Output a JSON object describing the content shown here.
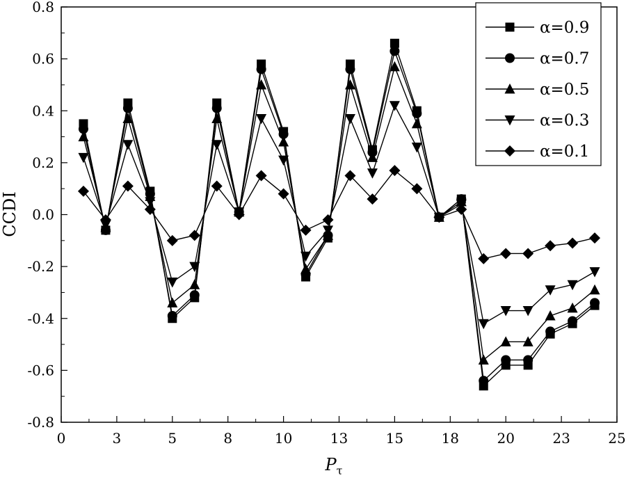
{
  "chart_data": {
    "type": "line",
    "ylabel": "CCDI",
    "xlabel": "P",
    "xlabel_subscript": "τ",
    "xlim": [
      0,
      25
    ],
    "ylim": [
      -0.8,
      0.8
    ],
    "x_ticks": [
      {
        "pos": 0,
        "label": "0"
      },
      {
        "pos": 2.5,
        "label": "3"
      },
      {
        "pos": 5,
        "label": "5"
      },
      {
        "pos": 7.5,
        "label": "8"
      },
      {
        "pos": 10,
        "label": "10"
      },
      {
        "pos": 12.5,
        "label": "13"
      },
      {
        "pos": 15,
        "label": "15"
      },
      {
        "pos": 17.5,
        "label": "18"
      },
      {
        "pos": 20,
        "label": "20"
      },
      {
        "pos": 22.5,
        "label": "23"
      },
      {
        "pos": 25,
        "label": "25"
      }
    ],
    "y_ticks": [
      "0.8",
      "0.6",
      "0.4",
      "0.2",
      "0.0",
      "-0.2",
      "-0.4",
      "-0.6",
      "-0.8"
    ],
    "y_tick_values": [
      0.8,
      0.6,
      0.4,
      0.2,
      0.0,
      -0.2,
      -0.4,
      -0.6,
      -0.8
    ],
    "grid": false,
    "legend_position": "top-right",
    "x": [
      1,
      2,
      3,
      4,
      5,
      6,
      7,
      8,
      9,
      10,
      11,
      12,
      13,
      14,
      15,
      16,
      17,
      18,
      19,
      20,
      21,
      22,
      23,
      24
    ],
    "series": [
      {
        "name": "α=0.9",
        "marker": "square",
        "values": [
          0.35,
          -0.06,
          0.43,
          0.09,
          -0.4,
          -0.32,
          0.43,
          0.01,
          0.58,
          0.32,
          -0.24,
          -0.09,
          0.58,
          0.25,
          0.66,
          0.4,
          -0.01,
          0.06,
          -0.66,
          -0.58,
          -0.58,
          -0.46,
          -0.42,
          -0.35
        ]
      },
      {
        "name": "α=0.7",
        "marker": "circle",
        "values": [
          0.33,
          -0.06,
          0.41,
          0.08,
          -0.39,
          -0.31,
          0.41,
          0.01,
          0.56,
          0.31,
          -0.23,
          -0.08,
          0.56,
          0.24,
          0.63,
          0.39,
          -0.01,
          0.06,
          -0.64,
          -0.56,
          -0.56,
          -0.45,
          -0.41,
          -0.34
        ]
      },
      {
        "name": "α=0.5",
        "marker": "triangle-up",
        "values": [
          0.3,
          -0.05,
          0.37,
          0.07,
          -0.34,
          -0.27,
          0.37,
          0.01,
          0.5,
          0.28,
          -0.21,
          -0.08,
          0.5,
          0.22,
          0.57,
          0.35,
          -0.01,
          0.05,
          -0.56,
          -0.49,
          -0.49,
          -0.39,
          -0.36,
          -0.29
        ]
      },
      {
        "name": "α=0.3",
        "marker": "triangle-down",
        "values": [
          0.22,
          -0.04,
          0.27,
          0.05,
          -0.26,
          -0.2,
          0.27,
          0.01,
          0.37,
          0.21,
          -0.16,
          -0.06,
          0.37,
          0.16,
          0.42,
          0.26,
          -0.01,
          0.04,
          -0.42,
          -0.37,
          -0.37,
          -0.29,
          -0.27,
          -0.22
        ]
      },
      {
        "name": "α=0.1",
        "marker": "diamond",
        "values": [
          0.09,
          -0.02,
          0.11,
          0.02,
          -0.1,
          -0.08,
          0.11,
          0.0,
          0.15,
          0.08,
          -0.06,
          -0.02,
          0.15,
          0.06,
          0.17,
          0.1,
          -0.01,
          0.02,
          -0.17,
          -0.15,
          -0.15,
          -0.12,
          -0.11,
          -0.09
        ]
      }
    ]
  }
}
